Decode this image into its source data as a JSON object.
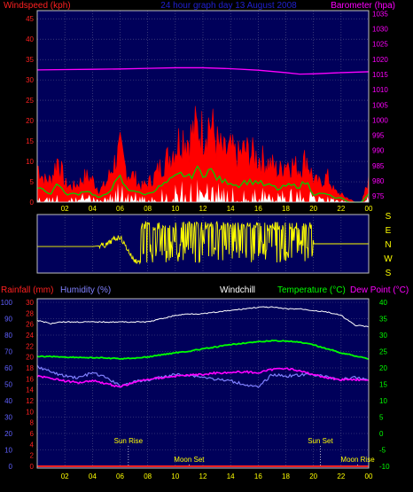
{
  "colors": {
    "background": "#000000",
    "plot_bg": "#00005a",
    "grid": "#5a5a8c",
    "windspeed": "#ff0000",
    "windspeed_label": "#ff2020",
    "avg_wind": "#00d000",
    "barometer": "#ff00ff",
    "title": "#2020d0",
    "wind_dir": "#ffff00",
    "rainfall": "#ff2020",
    "humidity": "#8080ff",
    "windchill": "#ffffff",
    "temperature": "#00ff00",
    "dewpoint": "#ff00ff",
    "axis_text": "#ffff00",
    "x_text": "#ffffff",
    "left_axis_blue": "#6060ff"
  },
  "chart_data": [
    {
      "type": "area",
      "title": "24 hour graph day 13 August 2008",
      "left_axis": {
        "label": "Windspeed (kph)",
        "ticks": [
          "0",
          "5",
          "10",
          "15",
          "20",
          "25",
          "30",
          "35",
          "40",
          "45"
        ],
        "range": [
          0,
          47
        ]
      },
      "right_axis": {
        "label": "Barometer (hpa)",
        "ticks": [
          "975",
          "980",
          "985",
          "990",
          "995",
          "1000",
          "1005",
          "1010",
          "1015",
          "1020",
          "1025",
          "1030",
          "1035"
        ],
        "range": [
          973,
          1036
        ]
      },
      "x_ticks": [
        "02",
        "04",
        "06",
        "08",
        "10",
        "12",
        "14",
        "16",
        "18",
        "20",
        "22",
        "00"
      ],
      "x_range_hours": [
        0,
        24
      ],
      "series": [
        {
          "name": "Windspeed (kph)",
          "role": "gust",
          "x": [
            0,
            0.5,
            1,
            1.5,
            2,
            2.5,
            3,
            3.5,
            4,
            4.5,
            5,
            5.5,
            6,
            6.5,
            7,
            7.5,
            8,
            8.5,
            9,
            9.5,
            10,
            10.5,
            11,
            11.5,
            12,
            12.5,
            13,
            13.5,
            14,
            14.5,
            15,
            15.5,
            16,
            16.5,
            17,
            17.5,
            18,
            18.5,
            19,
            19.5,
            20,
            20.5,
            21,
            21.5,
            22,
            22.5,
            23,
            23.5,
            24
          ],
          "values": [
            10,
            6,
            6,
            12,
            5,
            4,
            5,
            7,
            6,
            3,
            5,
            10,
            14,
            8,
            7,
            4,
            5,
            7,
            10,
            12,
            15,
            18,
            17,
            20,
            19,
            22,
            16,
            13,
            14,
            12,
            14,
            13,
            12,
            11,
            10,
            8,
            11,
            10,
            9,
            12,
            6,
            5,
            7,
            3,
            2,
            1,
            0,
            0,
            6
          ]
        },
        {
          "name": "Average wind",
          "role": "average",
          "x": [
            0,
            0.5,
            1,
            1.5,
            2,
            2.5,
            3,
            3.5,
            4,
            4.5,
            5,
            5.5,
            6,
            6.5,
            7,
            7.5,
            8,
            8.5,
            9,
            9.5,
            10,
            10.5,
            11,
            11.5,
            12,
            12.5,
            13,
            13.5,
            14,
            14.5,
            15,
            15.5,
            16,
            16.5,
            17,
            17.5,
            18,
            18.5,
            19,
            19.5,
            20,
            20.5,
            21,
            21.5,
            22,
            22.5,
            23,
            23.5,
            24
          ],
          "values": [
            4,
            3,
            2,
            5,
            2,
            2,
            2,
            3,
            2,
            1,
            2,
            4,
            6,
            3,
            3,
            2,
            2,
            3,
            4,
            5,
            6,
            7,
            6,
            8,
            7,
            8,
            6,
            5,
            5,
            4,
            5,
            5,
            5,
            4,
            4,
            3,
            4,
            4,
            4,
            5,
            2,
            2,
            2,
            1,
            1,
            0,
            0,
            0,
            2
          ]
        },
        {
          "name": "Barometer (hpa)",
          "role": "pressure",
          "x": [
            0,
            2,
            4,
            6,
            8,
            10,
            12,
            14,
            16,
            18,
            19,
            20,
            22,
            24
          ],
          "values": [
            1016.5,
            1016.6,
            1016.7,
            1016.8,
            1017.0,
            1017.2,
            1017.2,
            1016.9,
            1016.4,
            1015.6,
            1015.1,
            1015.2,
            1015.6,
            1015.9
          ]
        }
      ]
    },
    {
      "type": "line",
      "right_labels": [
        "S",
        "E",
        "N",
        "W",
        "S"
      ],
      "x_ticks": [
        "02",
        "04",
        "06",
        "08",
        "10",
        "12",
        "14",
        "16",
        "18",
        "20",
        "22",
        "00"
      ],
      "series": [
        {
          "name": "Wind direction",
          "x": [
            0,
            2,
            4,
            5,
            5.5,
            6,
            7,
            8,
            9,
            10,
            11,
            12,
            13,
            14,
            15,
            16,
            17,
            18,
            19,
            20,
            21,
            22,
            23,
            24
          ],
          "values": [
            200,
            200,
            200,
            190,
            150,
            130,
            300,
            320,
            170,
            150,
            120,
            100,
            280,
            140,
            310,
            300,
            270,
            240,
            300,
            180,
            180,
            180,
            180,
            180
          ]
        }
      ]
    },
    {
      "type": "line",
      "labels": [
        "Rainfall (mm)",
        "Humidity (%)",
        "Windchill",
        "Temperature (°C)",
        "Dew Point (°C)"
      ],
      "left_rain_ticks": [
        "0",
        "2",
        "4",
        "6",
        "8",
        "10",
        "12",
        "14",
        "16",
        "18",
        "20",
        "22",
        "24",
        "26",
        "28",
        "30"
      ],
      "left_humidity_ticks": [
        "0",
        "10",
        "20",
        "30",
        "40",
        "50",
        "60",
        "70",
        "80",
        "90",
        "100"
      ],
      "right_temp_ticks": [
        "-10",
        "-5",
        "0",
        "5",
        "10",
        "15",
        "20",
        "25",
        "30",
        "35",
        "40"
      ],
      "temp_range": [
        -10,
        40
      ],
      "x_ticks": [
        "02",
        "04",
        "06",
        "08",
        "10",
        "12",
        "14",
        "16",
        "18",
        "20",
        "22",
        "00"
      ],
      "annotations": [
        {
          "text": "Sun Rise",
          "hour": 6.6
        },
        {
          "text": "Moon Set",
          "hour": 11.0
        },
        {
          "text": "Sun Set",
          "hour": 20.5
        },
        {
          "text": "Moon Rise",
          "hour": 23.2
        }
      ],
      "series": [
        {
          "name": "Humidity (%)",
          "unit": "%",
          "x": [
            0,
            0.5,
            1,
            1.5,
            2,
            3,
            4,
            5,
            6,
            7,
            8,
            9,
            10,
            11,
            12,
            13,
            14,
            15,
            16,
            17,
            18,
            19,
            20,
            21,
            22,
            23,
            24
          ],
          "values": [
            89,
            88,
            87,
            88,
            88,
            88,
            88,
            88,
            88,
            88,
            88,
            90,
            92,
            93,
            93,
            94,
            95,
            96,
            97,
            97,
            96,
            96,
            95,
            94,
            92,
            86,
            85
          ]
        },
        {
          "name": "Temperature (°C)",
          "x": [
            0,
            1,
            2,
            3,
            4,
            5,
            6,
            7,
            8,
            9,
            10,
            11,
            12,
            13,
            14,
            15,
            16,
            17,
            18,
            19,
            20,
            21,
            22,
            23,
            24
          ],
          "values": [
            23.5,
            23.5,
            23.3,
            23.2,
            23.1,
            23.0,
            22.8,
            23.0,
            23.3,
            24.0,
            24.6,
            25.1,
            25.8,
            26.4,
            27.1,
            27.6,
            27.9,
            28.3,
            28.2,
            27.8,
            27.0,
            25.8,
            24.6,
            23.7,
            22.8
          ]
        },
        {
          "name": "Dew Point (°C)",
          "x": [
            0,
            1,
            2,
            3,
            4,
            5,
            6,
            7,
            8,
            9,
            10,
            11,
            12,
            13,
            14,
            15,
            16,
            17,
            18,
            19,
            20,
            21,
            22,
            23,
            24
          ],
          "values": [
            17.5,
            16.9,
            16.0,
            15.5,
            16.2,
            15.2,
            14.2,
            15.6,
            16.5,
            17.0,
            17.5,
            17.8,
            18.0,
            18.5,
            18.6,
            18.8,
            18.5,
            19.5,
            20.0,
            19.0,
            18.0,
            17.0,
            16.4,
            16.5,
            16.0
          ]
        },
        {
          "name": "Windchill",
          "x": [
            0,
            1,
            2,
            3,
            4,
            5,
            6,
            7,
            8,
            9,
            10,
            11,
            12,
            13,
            14,
            15,
            16,
            17,
            18,
            19,
            20,
            21,
            22,
            23,
            24
          ],
          "values": [
            20.5,
            18.7,
            17.5,
            17.0,
            18.5,
            17.0,
            14.5,
            15.8,
            16.2,
            17.2,
            18.0,
            17.8,
            17.2,
            16.5,
            16.0,
            15.0,
            14.0,
            18.0,
            17.5,
            17.8,
            18.0,
            17.2,
            16.5,
            17.0,
            16.5
          ]
        },
        {
          "name": "Rainfall (mm)",
          "x": [
            0,
            24
          ],
          "values": [
            0,
            0
          ]
        }
      ]
    }
  ]
}
